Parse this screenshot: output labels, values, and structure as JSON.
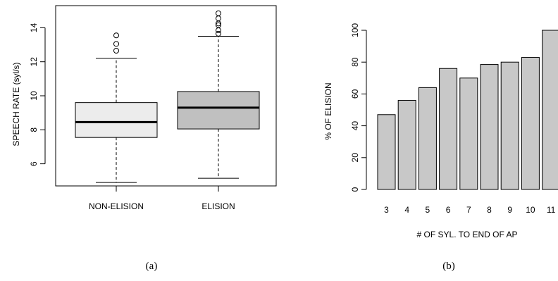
{
  "panels": {
    "a": {
      "caption": "(a)"
    },
    "b": {
      "caption": "(b)"
    }
  },
  "chart_data": [
    {
      "type": "box",
      "panel": "(a)",
      "ylabel": "SPEECH RATE (syl/s)",
      "xlabel": "",
      "ylim": [
        4.7,
        15.3
      ],
      "yticks": [
        6,
        8,
        10,
        12,
        14
      ],
      "categories": [
        "NON-ELISION",
        "ELISION"
      ],
      "series": [
        {
          "category": "NON-ELISION",
          "fill": "#ececec",
          "whisker_low": 4.9,
          "q1": 7.55,
          "median": 8.45,
          "q3": 9.6,
          "whisker_high": 12.2,
          "outliers": [
            12.65,
            13.05,
            13.55
          ]
        },
        {
          "category": "ELISION",
          "fill": "#c0c0c0",
          "whisker_low": 5.15,
          "q1": 8.05,
          "median": 9.3,
          "q3": 10.25,
          "whisker_high": 13.5,
          "outliers": [
            13.65,
            13.85,
            14.15,
            14.25,
            14.55,
            14.85
          ]
        }
      ]
    },
    {
      "type": "bar",
      "panel": "(b)",
      "ylabel": "% OF ELISION",
      "xlabel": "# OF SYL. TO END OF AP",
      "ylim": [
        0,
        100
      ],
      "yticks": [
        0,
        20,
        40,
        60,
        80,
        100
      ],
      "categories": [
        "3",
        "4",
        "5",
        "6",
        "7",
        "8",
        "9",
        "10",
        "11"
      ],
      "values": [
        47,
        56,
        64,
        76,
        70,
        78.5,
        80,
        83,
        100
      ],
      "bar_color": "#c8c8c8"
    }
  ]
}
